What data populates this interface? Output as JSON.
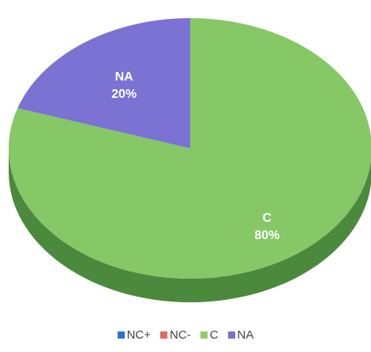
{
  "chart_data": {
    "type": "pie",
    "categories": [
      "NC+",
      "NC-",
      "C",
      "NA"
    ],
    "values": [
      0,
      0,
      80,
      20
    ],
    "slice_labels": [
      {
        "category": "NA",
        "percent": "20%"
      },
      {
        "category": "C",
        "percent": "80%"
      }
    ],
    "legend": {
      "position": "bottom",
      "items": [
        {
          "label": "NC+",
          "color": "#2f6fd0"
        },
        {
          "label": "NC-",
          "color": "#e06a5e"
        },
        {
          "label": "C",
          "color": "#8fcc6a"
        },
        {
          "label": "NA",
          "color": "#7d6fd0"
        }
      ]
    },
    "colors": {
      "C": "#86c766",
      "C_side": "#4b8a3c",
      "NA": "#7b72d4",
      "NA_side": "#4a3f95"
    },
    "style": "3d"
  }
}
